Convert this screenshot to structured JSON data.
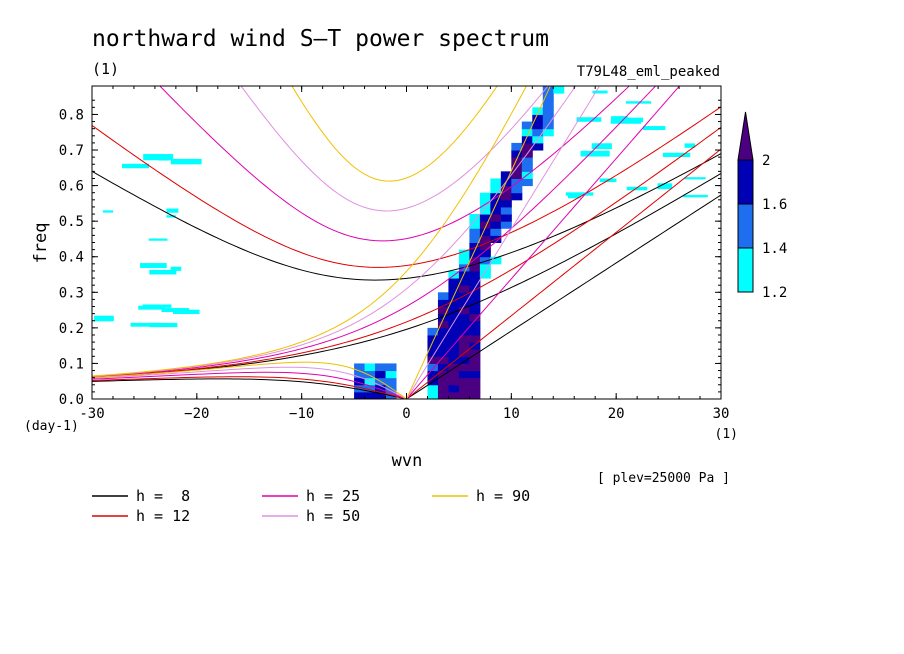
{
  "chart_data": {
    "type": "heatmap",
    "title": "northward wind S–T power spectrum",
    "subtitle_left": "(1)",
    "subtitle_right": "T79L48_eml_peaked",
    "xlabel": "wvn",
    "ylabel": "freq",
    "x_unit_label": "(1)",
    "y_unit_label": "(day-1)",
    "level_note": "[ plev=25000 Pa ]",
    "xlim": [
      -30,
      30
    ],
    "ylim": [
      0,
      0.88
    ],
    "x_ticks": [
      -30,
      -20,
      -10,
      0,
      10,
      20,
      30
    ],
    "x_tick_labels": [
      "-30",
      "−20",
      "−10",
      "0",
      "10",
      "20",
      "30"
    ],
    "y_ticks": [
      0,
      0.1,
      0.2,
      0.3,
      0.4,
      0.5,
      0.6,
      0.7,
      0.8
    ],
    "y_tick_labels": [
      "0.0",
      "0.1",
      "0.2",
      "0.3",
      "0.4",
      "0.5",
      "0.6",
      "0.7",
      "0.8"
    ],
    "colorbar": {
      "levels": [
        1.2,
        1.4,
        1.6,
        2
      ],
      "labels": [
        "1.2",
        "1.4",
        "1.6",
        "2"
      ],
      "colors": [
        "#00ffff",
        "#1e6ef0",
        "#0000b4",
        "#4b0082"
      ]
    },
    "dispersion_curves": [
      {
        "name": "h =  8",
        "label": "h =  8",
        "h": 8,
        "color": "#000000"
      },
      {
        "name": "h = 12",
        "label": "h = 12",
        "h": 12,
        "color": "#e00000"
      },
      {
        "name": "h = 25",
        "label": "h = 25",
        "h": 25,
        "color": "#e000b0"
      },
      {
        "name": "h = 50",
        "label": "h = 50",
        "h": 50,
        "color": "#e090e0"
      },
      {
        "name": "h = 90",
        "label": "h = 90",
        "h": 90,
        "color": "#f0c000"
      }
    ],
    "power_regions": [
      {
        "level": 1.2,
        "x": [
          1.5,
          13
        ],
        "y": [
          0,
          0.88
        ],
        "note": "main eastward ridge"
      },
      {
        "level": 1.2,
        "x": [
          -5.5,
          -0.5
        ],
        "y": [
          0,
          0.1
        ]
      },
      {
        "level": 1.2,
        "x": [
          -30,
          -22
        ],
        "y": [
          0.2,
          0.68
        ],
        "note": "scattered patches"
      },
      {
        "level": 1.2,
        "x": [
          14,
          27
        ],
        "y": [
          0.55,
          0.88
        ],
        "note": "scattered patches"
      },
      {
        "level": 1.6,
        "x": [
          3,
          9
        ],
        "y": [
          0,
          0.7
        ]
      },
      {
        "level": 2,
        "x": [
          3,
          7
        ],
        "y": [
          0,
          0.38
        ]
      }
    ]
  }
}
